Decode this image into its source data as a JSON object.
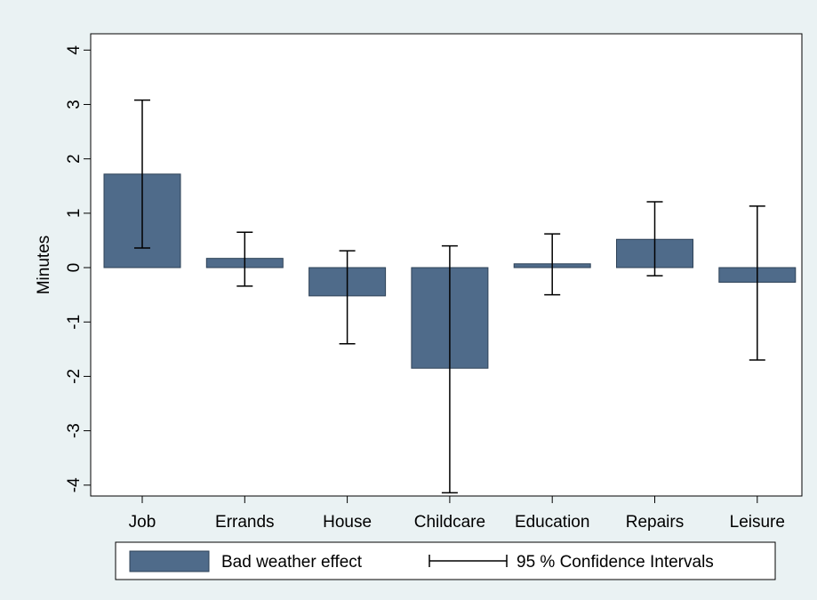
{
  "chart_data": {
    "type": "bar",
    "title": "",
    "xlabel": "",
    "ylabel": "Minutes",
    "ylim": [
      -4.2,
      4.3
    ],
    "yticks": [
      4,
      3,
      2,
      1,
      0,
      -1,
      -2,
      -3,
      -4
    ],
    "grid": false,
    "legend_position": "bottom",
    "categories": [
      "Job",
      "Errands",
      "House",
      "Childcare",
      "Education",
      "Repairs",
      "Leisure"
    ],
    "series": [
      {
        "name": "Bad weather effect",
        "values": [
          1.72,
          0.17,
          -0.52,
          -1.85,
          0.07,
          0.52,
          -0.27
        ],
        "color": "#4f6b8a"
      }
    ],
    "error_bars": {
      "name": "95 % Confidence Intervals",
      "lower": [
        0.36,
        -0.34,
        -1.4,
        -4.14,
        -0.5,
        -0.15,
        -1.7
      ],
      "upper": [
        3.08,
        0.65,
        0.31,
        0.4,
        0.62,
        1.21,
        1.13
      ],
      "color": "#000000"
    },
    "colors": {
      "outer_background": "#eaf2f3",
      "plot_background": "#ffffff"
    }
  }
}
